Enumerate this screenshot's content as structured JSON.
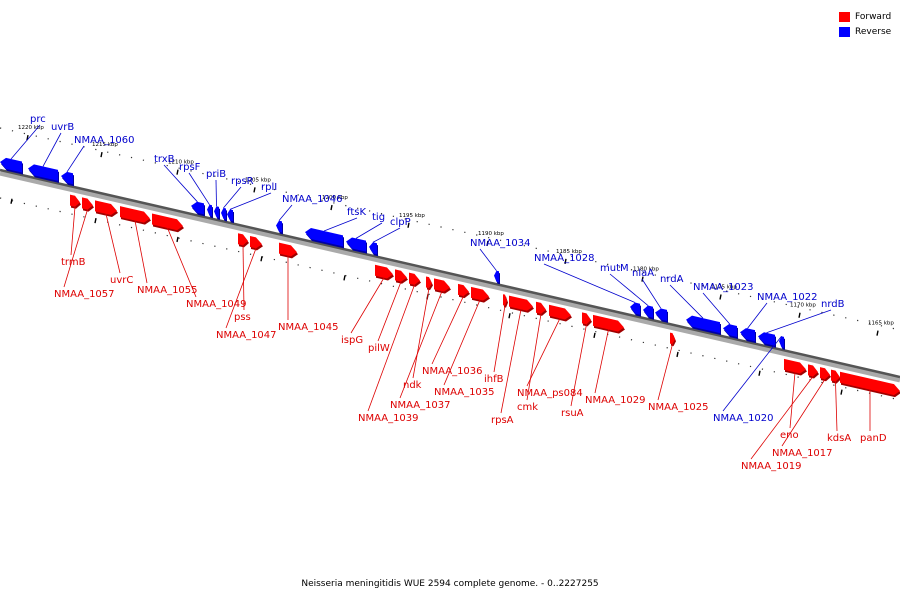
{
  "legend": {
    "forward_label": "Forward",
    "reverse_label": "Reverse",
    "forward_color": "#ff0000",
    "reverse_color": "#0000ff"
  },
  "caption": "Neisseria meningitidis WUE 2594 complete genome. - 0..2227255",
  "ticks": [
    "1220 kbp",
    "1215 kbp",
    "1210 kbp",
    "1205 kbp",
    "1200 kbp",
    "1195 kbp",
    "1190 kbp",
    "1185 kbp",
    "1180 kbp",
    "1175 kbp",
    "1170 kbp",
    "1165 kbp"
  ],
  "reverse_labels": [
    "prc",
    "uvrB",
    "NMAA_1060",
    "trxB",
    "rpsF",
    "priB",
    "rpsR",
    "rplI",
    "NMAA_1046",
    "ftsK",
    "tig",
    "clpP",
    "NMAA_1034",
    "NMAA_1028",
    "mutM",
    "nlaA",
    "nrdA",
    "NMAA_1023",
    "NMAA_1022",
    "nrdB",
    "NMAA_1020"
  ],
  "forward_labels": [
    "trmB",
    "NMAA_1057",
    "uvrC",
    "NMAA_1055",
    "NMAA_1049",
    "pss",
    "NMAA_1047",
    "NMAA_1045",
    "ispG",
    "pilW",
    "NMAA_1039",
    "ndk",
    "NMAA_1037",
    "NMAA_1036",
    "NMAA_1035",
    "ihfB",
    "rpsA",
    "cmk",
    "NMAA_ps084",
    "rsuA",
    "NMAA_1029",
    "NMAA_1025",
    "eno",
    "NMAA_1019",
    "NMAA_1017",
    "kdsA",
    "panD"
  ]
}
